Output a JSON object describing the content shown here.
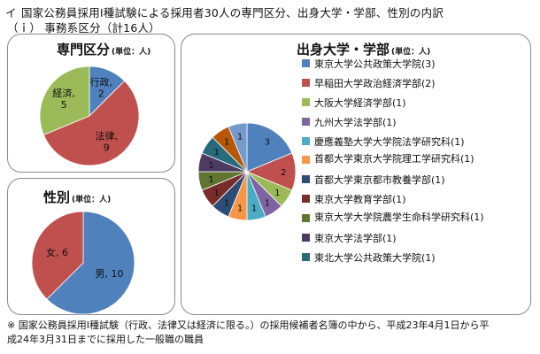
{
  "header": {
    "line1_mark": "イ",
    "line1": "国家公務員採用Ⅰ種試験による採用者30人の専門区分、出身大学・学部、性別の内訳",
    "line2": "（ｉ） 事務系区分（計16人）"
  },
  "chart_data": [
    {
      "type": "pie",
      "title": "専門区分",
      "unit": "(単位：人)",
      "slices": [
        {
          "label": "行政",
          "value": 2,
          "color": "#4f81bd"
        },
        {
          "label": "法律",
          "value": 9,
          "color": "#c0504d"
        },
        {
          "label": "経済",
          "value": 5,
          "color": "#9bbb59"
        }
      ],
      "data_labels": [
        "行政,\n2",
        "法律,\n9",
        "経済,\n5"
      ]
    },
    {
      "type": "pie",
      "title": "性別",
      "unit": "(単位：人)",
      "slices": [
        {
          "label": "男",
          "value": 10,
          "color": "#4f81bd"
        },
        {
          "label": "女",
          "value": 6,
          "color": "#c0504d"
        }
      ],
      "data_labels": [
        "男, 10",
        "女, 6"
      ]
    },
    {
      "type": "pie",
      "title": "出身大学・学部",
      "unit": "(単位：人)",
      "slices": [
        {
          "label": "東京大学公共政策大学院",
          "value": 3,
          "color": "#4f81bd"
        },
        {
          "label": "早稲田大学政治経済学部",
          "value": 2,
          "color": "#c0504d"
        },
        {
          "label": "大阪大学経済学部",
          "value": 1,
          "color": "#9bbb59"
        },
        {
          "label": "九州大学法学部",
          "value": 1,
          "color": "#8064a2"
        },
        {
          "label": "慶應義塾大学大学院法学研究科",
          "value": 1,
          "color": "#4bacc6"
        },
        {
          "label": "首都大学東京大学院理工学研究科",
          "value": 1,
          "color": "#f79646"
        },
        {
          "label": "首都大学東京都市教養学部",
          "value": 1,
          "color": "#2c4d75"
        },
        {
          "label": "東京大学教育学部",
          "value": 1,
          "color": "#772c2a"
        },
        {
          "label": "東京大学大学院農学生命科学研究科",
          "value": 1,
          "color": "#5f7530"
        },
        {
          "label": "東京大学法学部",
          "value": 1,
          "color": "#4d3b62"
        },
        {
          "label": "東北大学公共政策大学院",
          "value": 1,
          "color": "#276a7c"
        },
        {
          "label": "",
          "value": 1,
          "color": "#b65708"
        },
        {
          "label": "",
          "value": 1,
          "color": "#729aca"
        }
      ],
      "data_labels": [
        "3",
        "2",
        "1",
        "1",
        "1",
        "1",
        "1",
        "1",
        "1",
        "1",
        "1",
        "1",
        "1"
      ],
      "legend": [
        "東京大学公共政策大学院(3)",
        "早稲田大学政治経済学部(2)",
        "大阪大学経済学部(1)",
        "九州大学法学部(1)",
        "慶應義塾大学大学院法学研究科(1)",
        "首都大学東京大学院理工学研究科(1)",
        "首都大学東京都市教養学部(1)",
        "東京大学教育学部(1)",
        "東京大学大学院農学生命科学研究科(1)",
        "東京大学法学部(1)",
        "東北大学公共政策大学院(1)"
      ],
      "legend_placement": "right"
    }
  ],
  "footnote": {
    "line1": "※ 国家公務員採用Ⅰ種試験（行政、法律又は経済に限る。）の採用候補者名簿の中から、平成23年4月1日から平",
    "line2": "成24年3月31日までに採用した一般職の職員"
  }
}
